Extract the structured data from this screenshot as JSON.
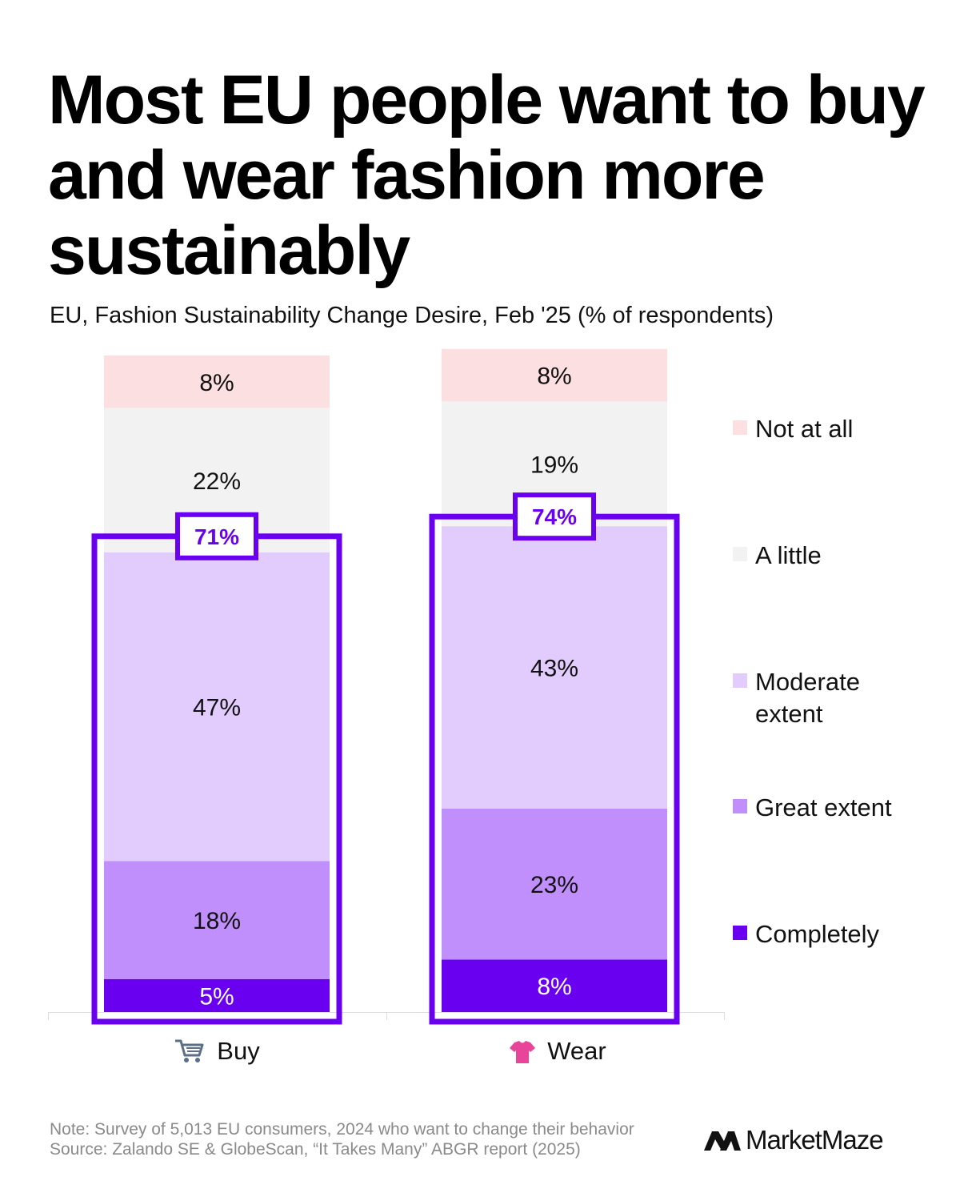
{
  "title": "Most EU people want to buy and wear fashion more sustainably",
  "subtitle": "EU, Fashion Sustainability Change Desire, Feb '25 (% of respondents)",
  "colors": {
    "not_at_all": "#fbdfe1",
    "a_little": "#f2f2f2",
    "moderate_extent": "#e2cbfd",
    "great_extent": "#c08ffb",
    "completely": "#6a00f0",
    "highlight": "#6a00f0"
  },
  "chart_data": {
    "type": "bar",
    "stacked": true,
    "ylim": [
      0,
      100
    ],
    "grid": false,
    "legend_position": "right",
    "categories": [
      "Buy",
      "Wear"
    ],
    "category_icons": [
      "shopping-cart-icon",
      "t-shirt-icon"
    ],
    "series": [
      {
        "name": "Completely",
        "values": [
          5,
          8
        ],
        "labels": [
          "5%",
          "8%"
        ]
      },
      {
        "name": "Great extent",
        "values": [
          18,
          23
        ],
        "labels": [
          "18%",
          "23%"
        ]
      },
      {
        "name": "Moderate extent",
        "values": [
          47,
          43
        ],
        "labels": [
          "47%",
          "43%"
        ]
      },
      {
        "name": "A little",
        "values": [
          22,
          19
        ],
        "labels": [
          "22%",
          "19%"
        ]
      },
      {
        "name": "Not at all",
        "values": [
          8,
          8
        ],
        "labels": [
          "8%",
          "8%"
        ]
      }
    ],
    "highlight": {
      "values": [
        71,
        74
      ],
      "labels": [
        "71%",
        "74%"
      ]
    }
  },
  "legend": [
    {
      "label": "Not at all",
      "key": "not_at_all"
    },
    {
      "label": "A little",
      "key": "a_little"
    },
    {
      "label": "Moderate extent",
      "key": "moderate_extent"
    },
    {
      "label": "Great extent",
      "key": "great_extent"
    },
    {
      "label": "Completely",
      "key": "completely"
    }
  ],
  "footer": {
    "note": "Note: Survey of 5,013 EU consumers, 2024 who want to change their behavior",
    "source": "Source: Zalando SE & GlobeScan, “It Takes Many” ABGR report (2025)"
  },
  "brand": {
    "name": "MarketMaze"
  }
}
